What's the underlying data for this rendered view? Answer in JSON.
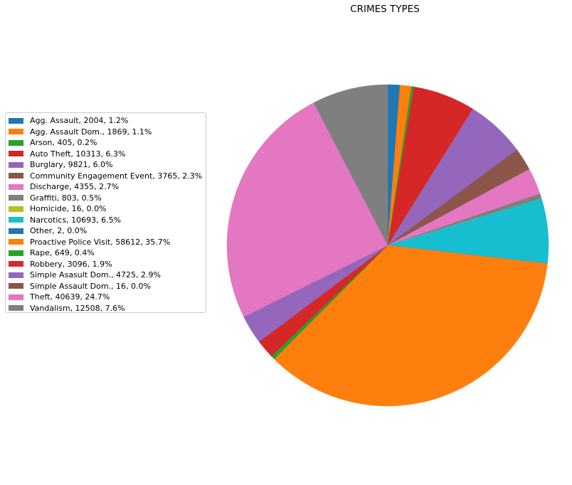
{
  "chart_data": {
    "type": "pie",
    "title": "CRIMES TYPES",
    "start_angle_deg": 90,
    "direction": "clockwise",
    "legend_position": "left",
    "slices": [
      {
        "label": "Agg. Assault, 2004, 1.2%",
        "category": "Agg. Assault",
        "value": 2004,
        "percent": 1.2,
        "color": "#1f77b4"
      },
      {
        "label": "Agg. Assault Dom., 1869, 1.1%",
        "category": "Agg. Assault Dom.",
        "value": 1869,
        "percent": 1.1,
        "color": "#ff7f0e"
      },
      {
        "label": "Arson, 405, 0.2%",
        "category": "Arson",
        "value": 405,
        "percent": 0.2,
        "color": "#2ca02c"
      },
      {
        "label": "Auto Theft, 10313, 6.3%",
        "category": "Auto Theft",
        "value": 10313,
        "percent": 6.3,
        "color": "#d62728"
      },
      {
        "label": "Burglary, 9821, 6.0%",
        "category": "Burglary",
        "value": 9821,
        "percent": 6.0,
        "color": "#9467bd"
      },
      {
        "label": "Community Engagement Event, 3765, 2.3%",
        "category": "Community Engagement Event",
        "value": 3765,
        "percent": 2.3,
        "color": "#8c564b"
      },
      {
        "label": "Discharge, 4355, 2.7%",
        "category": "Discharge",
        "value": 4355,
        "percent": 2.7,
        "color": "#e377c2"
      },
      {
        "label": "Graffiti, 803, 0.5%",
        "category": "Graffiti",
        "value": 803,
        "percent": 0.5,
        "color": "#7f7f7f"
      },
      {
        "label": "Homicide, 16, 0.0%",
        "category": "Homicide",
        "value": 16,
        "percent": 0.0,
        "color": "#bcbd22"
      },
      {
        "label": "Narcotics, 10693, 6.5%",
        "category": "Narcotics",
        "value": 10693,
        "percent": 6.5,
        "color": "#17becf"
      },
      {
        "label": "Other, 2, 0.0%",
        "category": "Other",
        "value": 2,
        "percent": 0.0,
        "color": "#1f77b4"
      },
      {
        "label": "Proactive Police Visit, 58612, 35.7%",
        "category": "Proactive Police Visit",
        "value": 58612,
        "percent": 35.7,
        "color": "#ff7f0e"
      },
      {
        "label": "Rape, 649, 0.4%",
        "category": "Rape",
        "value": 649,
        "percent": 0.4,
        "color": "#2ca02c"
      },
      {
        "label": "Robbery, 3096, 1.9%",
        "category": "Robbery",
        "value": 3096,
        "percent": 1.9,
        "color": "#d62728"
      },
      {
        "label": "Simple Asasult Dom., 4725, 2.9%",
        "category": "Simple Asasult Dom.",
        "value": 4725,
        "percent": 2.9,
        "color": "#9467bd"
      },
      {
        "label": "Simple Assault Dom., 16, 0.0%",
        "category": "Simple Assault Dom.",
        "value": 16,
        "percent": 0.0,
        "color": "#8c564b"
      },
      {
        "label": "Theft, 40639, 24.7%",
        "category": "Theft",
        "value": 40639,
        "percent": 24.7,
        "color": "#e377c2"
      },
      {
        "label": "Vandalism, 12508, 7.6%",
        "category": "Vandalism",
        "value": 12508,
        "percent": 7.6,
        "color": "#7f7f7f"
      }
    ]
  }
}
